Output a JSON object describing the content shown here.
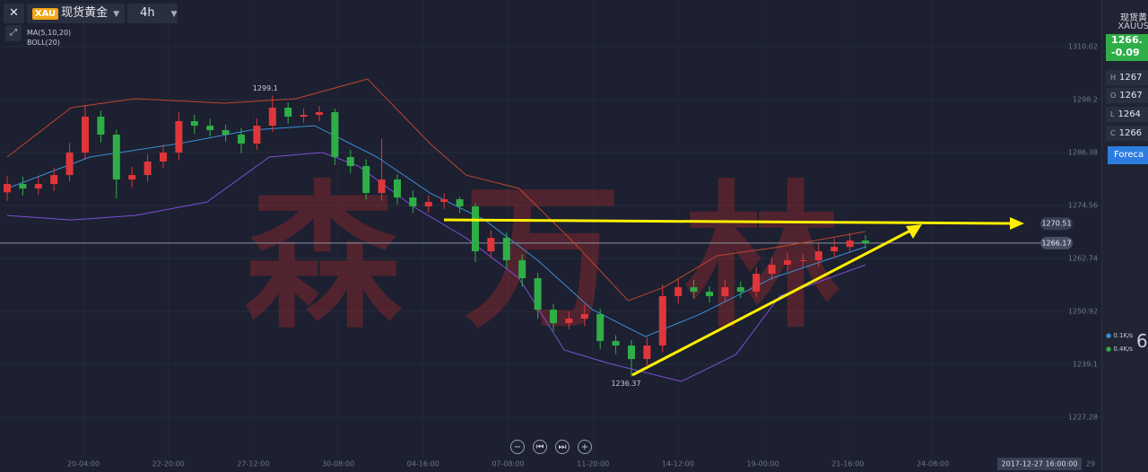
{
  "toolbar": {
    "symbol": "XAU",
    "name": "现货黄金",
    "period": "4h",
    "indicators": [
      "MA(5,10,20)",
      "BOLL(20)"
    ]
  },
  "watermark": "森万林",
  "chart_data": {
    "type": "candlestick",
    "up_color": "#e0363a",
    "down_color": "#2fae48",
    "ylim": [
      1218.26,
      1320.44
    ],
    "yticks": [
      1227.28,
      1239.1,
      1250.92,
      1262.74,
      1274.56,
      1286.38,
      1298.2,
      1310.02
    ],
    "grid": true,
    "xtick_labels": [
      "20-04:00",
      "22-20:00",
      "27-12:00",
      "30-08:00",
      "04-16:00",
      "07-08:00",
      "11-20:00",
      "14-12:00",
      "19-00:00",
      "21-16:00",
      "24-08:00"
    ],
    "cursor_label": "2017-12-27 16:00:00",
    "cursor_next": "29",
    "open": [
      1277.5,
      1279.36,
      1278.36,
      1279.36,
      1281.36,
      1286.37,
      1294.39,
      1290.38,
      1280.36,
      1281.36,
      1284.37,
      1286.37,
      1293.39,
      1292.38,
      1291.38,
      1290.38,
      1288.38,
      1292.38,
      1296.39,
      1294.39,
      1294.79,
      1295.39,
      1285.37,
      1283.37,
      1277.35,
      1280.36,
      1276.35,
      1274.35,
      1275.35,
      1275.95,
      1274.35,
      1264.33,
      1267.33,
      1262.32,
      1258.32,
      1251.3,
      1248.3,
      1249.3,
      1250.3,
      1244.29,
      1243.29,
      1240.28,
      1243.29,
      1254.31,
      1256.31,
      1255.31,
      1254.31,
      1256.31,
      1255.31,
      1259.32,
      1261.32,
      1262.32,
      1262.32,
      1264.33,
      1265.33,
      1266.73
    ],
    "high": [
      1281.2,
      1281.0,
      1280.9,
      1283.0,
      1288.5,
      1297.0,
      1295.8,
      1291.5,
      1283.2,
      1286.0,
      1288.2,
      1295.4,
      1294.8,
      1293.9,
      1292.6,
      1291.9,
      1294.0,
      1299.1,
      1297.6,
      1296.2,
      1296.8,
      1296.2,
      1287.0,
      1284.9,
      1289.4,
      1281.5,
      1277.9,
      1276.8,
      1277.2,
      1276.5,
      1275.0,
      1269.0,
      1268.5,
      1263.6,
      1259.5,
      1252.6,
      1250.8,
      1252.4,
      1251.5,
      1245.6,
      1244.5,
      1245.2,
      1256.9,
      1258.2,
      1257.9,
      1256.5,
      1258.0,
      1257.6,
      1260.8,
      1262.9,
      1264.0,
      1263.8,
      1266.1,
      1267.2,
      1268.4,
      1267.9
    ],
    "low": [
      1275.6,
      1276.8,
      1276.9,
      1277.8,
      1279.9,
      1284.8,
      1288.6,
      1276.1,
      1278.6,
      1279.8,
      1282.9,
      1284.6,
      1290.5,
      1289.9,
      1288.8,
      1286.2,
      1287.0,
      1291.0,
      1292.8,
      1293.0,
      1293.4,
      1283.6,
      1281.8,
      1275.8,
      1275.6,
      1274.8,
      1272.9,
      1273.0,
      1273.8,
      1272.8,
      1261.9,
      1262.8,
      1260.5,
      1256.4,
      1249.2,
      1246.5,
      1246.9,
      1247.6,
      1242.5,
      1241.4,
      1236.37,
      1238.9,
      1241.8,
      1252.6,
      1253.8,
      1252.9,
      1253.0,
      1253.9,
      1254.0,
      1257.9,
      1259.8,
      1260.9,
      1261.0,
      1262.9,
      1263.9,
      1264.9
    ],
    "close": [
      1279.36,
      1278.36,
      1279.36,
      1281.36,
      1286.37,
      1294.39,
      1290.38,
      1280.36,
      1281.36,
      1284.37,
      1286.37,
      1293.39,
      1292.38,
      1291.38,
      1290.38,
      1288.38,
      1292.38,
      1296.39,
      1294.39,
      1294.79,
      1295.39,
      1285.37,
      1283.37,
      1277.35,
      1280.36,
      1276.35,
      1274.35,
      1275.35,
      1275.95,
      1274.35,
      1264.33,
      1267.33,
      1262.32,
      1258.32,
      1251.3,
      1248.3,
      1249.3,
      1250.3,
      1244.29,
      1243.29,
      1240.28,
      1243.29,
      1254.31,
      1256.31,
      1255.31,
      1254.31,
      1256.31,
      1255.31,
      1259.32,
      1261.32,
      1262.32,
      1262.32,
      1264.33,
      1265.33,
      1266.73,
      1266.17
    ],
    "lines": [
      {
        "color": "#c0452f",
        "x": [
          0,
          4.1,
          8.2,
          13.9,
          18.5,
          23.1,
          27.1,
          29.4,
          32.8,
          36.3,
          39.8,
          42.1,
          45.5,
          49.5,
          55
        ],
        "values": [
          1285.37,
          1296.39,
          1298.4,
          1297.39,
          1298.4,
          1302.8,
          1288.38,
          1281.36,
          1278.36,
          1266.33,
          1253.31,
          1256.31,
          1263.33,
          1265.33,
          1268.74
        ]
      },
      {
        "color": "#3a8fd8",
        "x": [
          0,
          5.3,
          11,
          15.6,
          19.7,
          23.7,
          27.1,
          30.6,
          34,
          37.5,
          40.9,
          44.4,
          49,
          55
        ],
        "values": [
          1278.36,
          1285.37,
          1288.38,
          1291.38,
          1292.38,
          1285.37,
          1277.35,
          1271.34,
          1262.32,
          1251.3,
          1245.29,
          1250.3,
          1258.32,
          1265.33
        ]
      },
      {
        "color": "#7a4fd6",
        "x": [
          0,
          4.1,
          8.2,
          12.8,
          16.8,
          20.2,
          22.5,
          26,
          29.4,
          32.8,
          35.7,
          38.6,
          43.2,
          46.7,
          49.5,
          55
        ],
        "values": [
          1272.34,
          1271.34,
          1272.34,
          1275.35,
          1285.37,
          1286.37,
          1283.37,
          1274.35,
          1267.33,
          1258.32,
          1242.29,
          1239.28,
          1235.27,
          1241.28,
          1254.31,
          1261.32
        ]
      }
    ],
    "high_mark": 1299.1,
    "low_mark": 1236.37,
    "target_price": 1270.51,
    "last_price": 1266.17
  },
  "side_panel": {
    "name": "现货黄",
    "symbol": "XAUUS",
    "price": "1266.",
    "change": "-0.09",
    "ohlc": [
      {
        "key": "H",
        "value": "1267"
      },
      {
        "key": "O",
        "value": "1267"
      },
      {
        "key": "L",
        "value": "1264"
      },
      {
        "key": "C",
        "value": "1266"
      }
    ],
    "forecast": "Foreca",
    "rates": [
      "0.1K/s",
      "0.4K/s"
    ],
    "gauge": "6"
  }
}
